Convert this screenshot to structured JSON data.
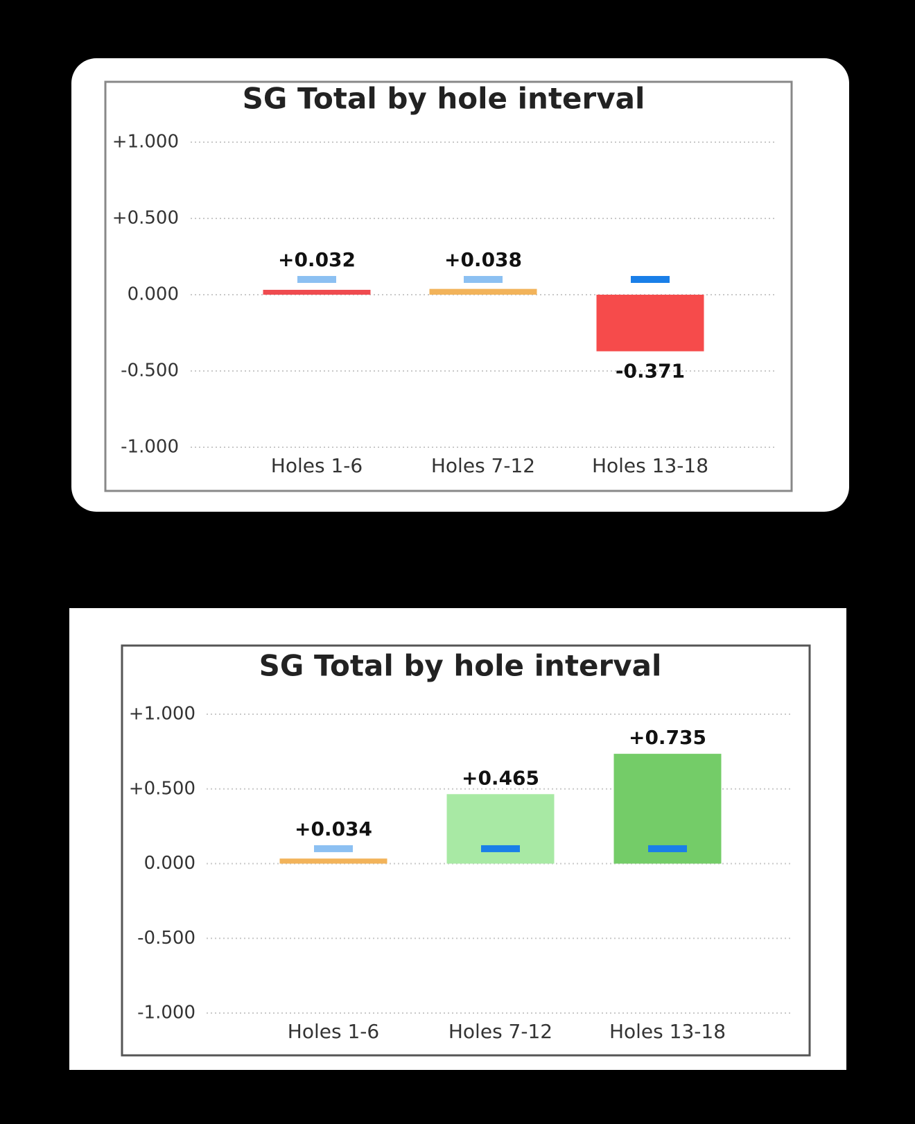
{
  "chart_data": [
    {
      "type": "bar",
      "title": "SG Total by hole interval",
      "categories": [
        "Holes 1-6",
        "Holes 7-12",
        "Holes 13-18"
      ],
      "values": [
        0.032,
        0.038,
        -0.371
      ],
      "value_labels": [
        "+0.032",
        "+0.038",
        "-0.371"
      ],
      "colors": [
        "#ef4b4f",
        "#f2b35a",
        "#f64b4b"
      ],
      "markers": {
        "colors": [
          "#8cc0f2",
          "#8cc0f2",
          "#1a7fe8"
        ],
        "values": [
          0.1,
          0.1,
          0.1
        ]
      },
      "ylim": [
        -1,
        1
      ],
      "yticks": [
        {
          "value": -1,
          "label": "-1.000"
        },
        {
          "value": -0.5,
          "label": "-0.500"
        },
        {
          "value": 0,
          "label": "0.000"
        },
        {
          "value": 0.5,
          "label": "+0.500"
        },
        {
          "value": 1,
          "label": "+1.000"
        }
      ],
      "grid": true
    },
    {
      "type": "bar",
      "title": "SG Total by hole interval",
      "categories": [
        "Holes 1-6",
        "Holes 7-12",
        "Holes 13-18"
      ],
      "values": [
        0.034,
        0.465,
        0.735
      ],
      "value_labels": [
        "+0.034",
        "+0.465",
        "+0.735"
      ],
      "colors": [
        "#f2b35a",
        "#a8e9a4",
        "#74cc68"
      ],
      "markers": {
        "colors": [
          "#8cc0f2",
          "#1a7fe8",
          "#1a7fe8"
        ],
        "values": [
          0.1,
          0.1,
          0.1
        ]
      },
      "ylim": [
        -1,
        1
      ],
      "yticks": [
        {
          "value": -1,
          "label": "-1.000"
        },
        {
          "value": -0.5,
          "label": "-0.500"
        },
        {
          "value": 0,
          "label": "0.000"
        },
        {
          "value": 0.5,
          "label": "+0.500"
        },
        {
          "value": 1,
          "label": "+1.000"
        }
      ],
      "grid": true
    }
  ]
}
